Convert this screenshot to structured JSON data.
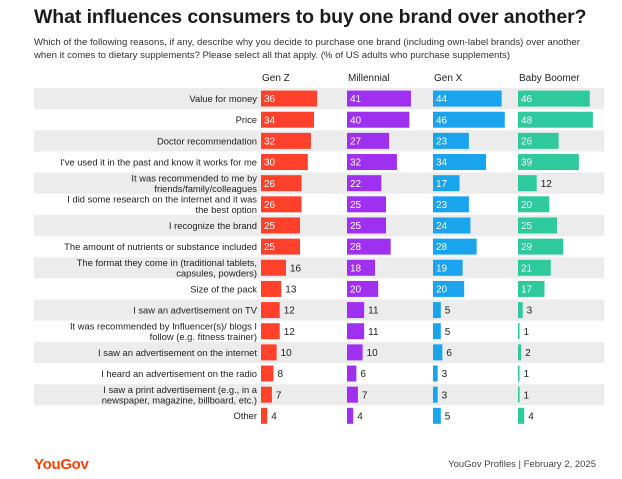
{
  "title": "What influences consumers to buy one brand over another?",
  "subtitle": "Which of the following reasons, if any, describe why you decide to purchase one brand (including own-label brands) over another when it comes to dietary supplements? Please select all that apply. (% of US adults who purchase supplements)",
  "logo": "YouGov",
  "footer": "YouGov Profiles | February 2, 2025",
  "colors": {
    "gen_z": "#ff412c",
    "millennial": "#a030f0",
    "gen_x": "#1aa4ee",
    "baby_boomer": "#2ec99d",
    "band": "#ececec"
  },
  "chart_data": {
    "type": "bar",
    "title": "What influences consumers to buy one brand over another?",
    "xlabel": "",
    "ylabel": "",
    "xlim": [
      0,
      50
    ],
    "categories": [
      [
        "Value for money"
      ],
      [
        "Price"
      ],
      [
        "Doctor recommendation"
      ],
      [
        "I've used it in the past and know it works for me"
      ],
      [
        "It was recommended to me by",
        "friends/family/colleagues"
      ],
      [
        "I did some research on the internet and it was",
        "the best option"
      ],
      [
        "I recognize the brand"
      ],
      [
        "The amount of nutrients or substance included"
      ],
      [
        "The format they come in (traditional tablets,",
        "capsules, powders)"
      ],
      [
        "Size of the pack"
      ],
      [
        "I saw an advertisement on TV"
      ],
      [
        "It was recommended by Influencer(s)/ blogs I",
        "follow (e.g. fitness trainer)"
      ],
      [
        "I saw an advertisement on the internet"
      ],
      [
        "I heard an advertisement on the radio"
      ],
      [
        "I saw a print advertisement (e.g., in a",
        "newspaper, magazine, billboard, etc.)"
      ],
      [
        "Other"
      ]
    ],
    "series": [
      {
        "name": "Gen Z",
        "values": [
          36,
          34,
          32,
          30,
          26,
          26,
          25,
          25,
          16,
          13,
          12,
          12,
          10,
          8,
          7,
          4
        ]
      },
      {
        "name": "Millennial",
        "values": [
          41,
          40,
          27,
          32,
          22,
          25,
          25,
          28,
          18,
          20,
          11,
          11,
          10,
          6,
          7,
          4
        ]
      },
      {
        "name": "Gen X",
        "values": [
          44,
          46,
          23,
          34,
          17,
          23,
          24,
          28,
          19,
          20,
          5,
          5,
          6,
          3,
          3,
          5
        ]
      },
      {
        "name": "Baby Boomer",
        "values": [
          46,
          48,
          26,
          39,
          12,
          20,
          25,
          29,
          21,
          17,
          3,
          1,
          2,
          1,
          1,
          4
        ]
      }
    ]
  }
}
